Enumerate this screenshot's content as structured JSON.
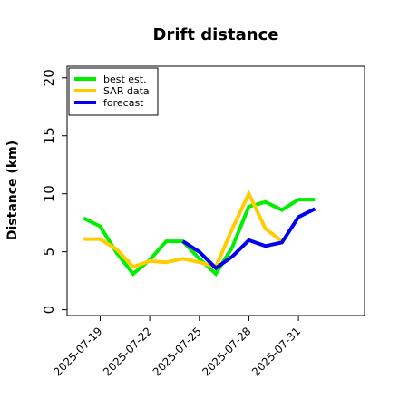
{
  "chart_data": {
    "type": "line",
    "title": "Drift distance",
    "xlabel": "",
    "ylabel": "Distance (km)",
    "ylim": [
      -0.5,
      21
    ],
    "yticks": [
      0,
      5,
      10,
      15,
      20
    ],
    "xlim": [
      "2025-07-17",
      "2025-08-04"
    ],
    "xticks": [
      "2025-07-19",
      "2025-07-22",
      "2025-07-25",
      "2025-07-28",
      "2025-07-31"
    ],
    "grid": false,
    "legend": {
      "position": "top-left"
    },
    "series": [
      {
        "name": "best est.",
        "color": "#00ee00",
        "x": [
          "2025-07-18",
          "2025-07-19",
          "2025-07-20",
          "2025-07-21",
          "2025-07-22",
          "2025-07-23",
          "2025-07-24",
          "2025-07-25",
          "2025-07-26",
          "2025-07-27",
          "2025-07-28",
          "2025-07-29",
          "2025-07-30",
          "2025-07-31",
          "2025-08-01"
        ],
        "values": [
          7.9,
          7.2,
          4.9,
          3.1,
          4.3,
          5.9,
          5.9,
          4.4,
          3.1,
          5.4,
          8.9,
          9.3,
          8.6,
          9.5,
          9.5
        ]
      },
      {
        "name": "SAR data",
        "color": "#ffcc00",
        "x": [
          "2025-07-18",
          "2025-07-19",
          "2025-07-20",
          "2025-07-21",
          "2025-07-22",
          "2025-07-23",
          "2025-07-24",
          "2025-07-25",
          "2025-07-26",
          "2025-07-27",
          "2025-07-28",
          "2025-07-29",
          "2025-07-30"
        ],
        "values": [
          6.1,
          6.1,
          5.2,
          3.7,
          4.2,
          4.1,
          4.4,
          4.1,
          3.7,
          7.0,
          10.0,
          7.0,
          5.9
        ]
      },
      {
        "name": "forecast",
        "color": "#0000ee",
        "x": [
          "2025-07-24",
          "2025-07-25",
          "2025-07-26",
          "2025-07-27",
          "2025-07-28",
          "2025-07-29",
          "2025-07-30",
          "2025-07-31",
          "2025-08-01"
        ],
        "values": [
          5.9,
          5.0,
          3.6,
          4.6,
          6.0,
          5.5,
          5.8,
          8.0,
          8.7
        ]
      }
    ]
  }
}
